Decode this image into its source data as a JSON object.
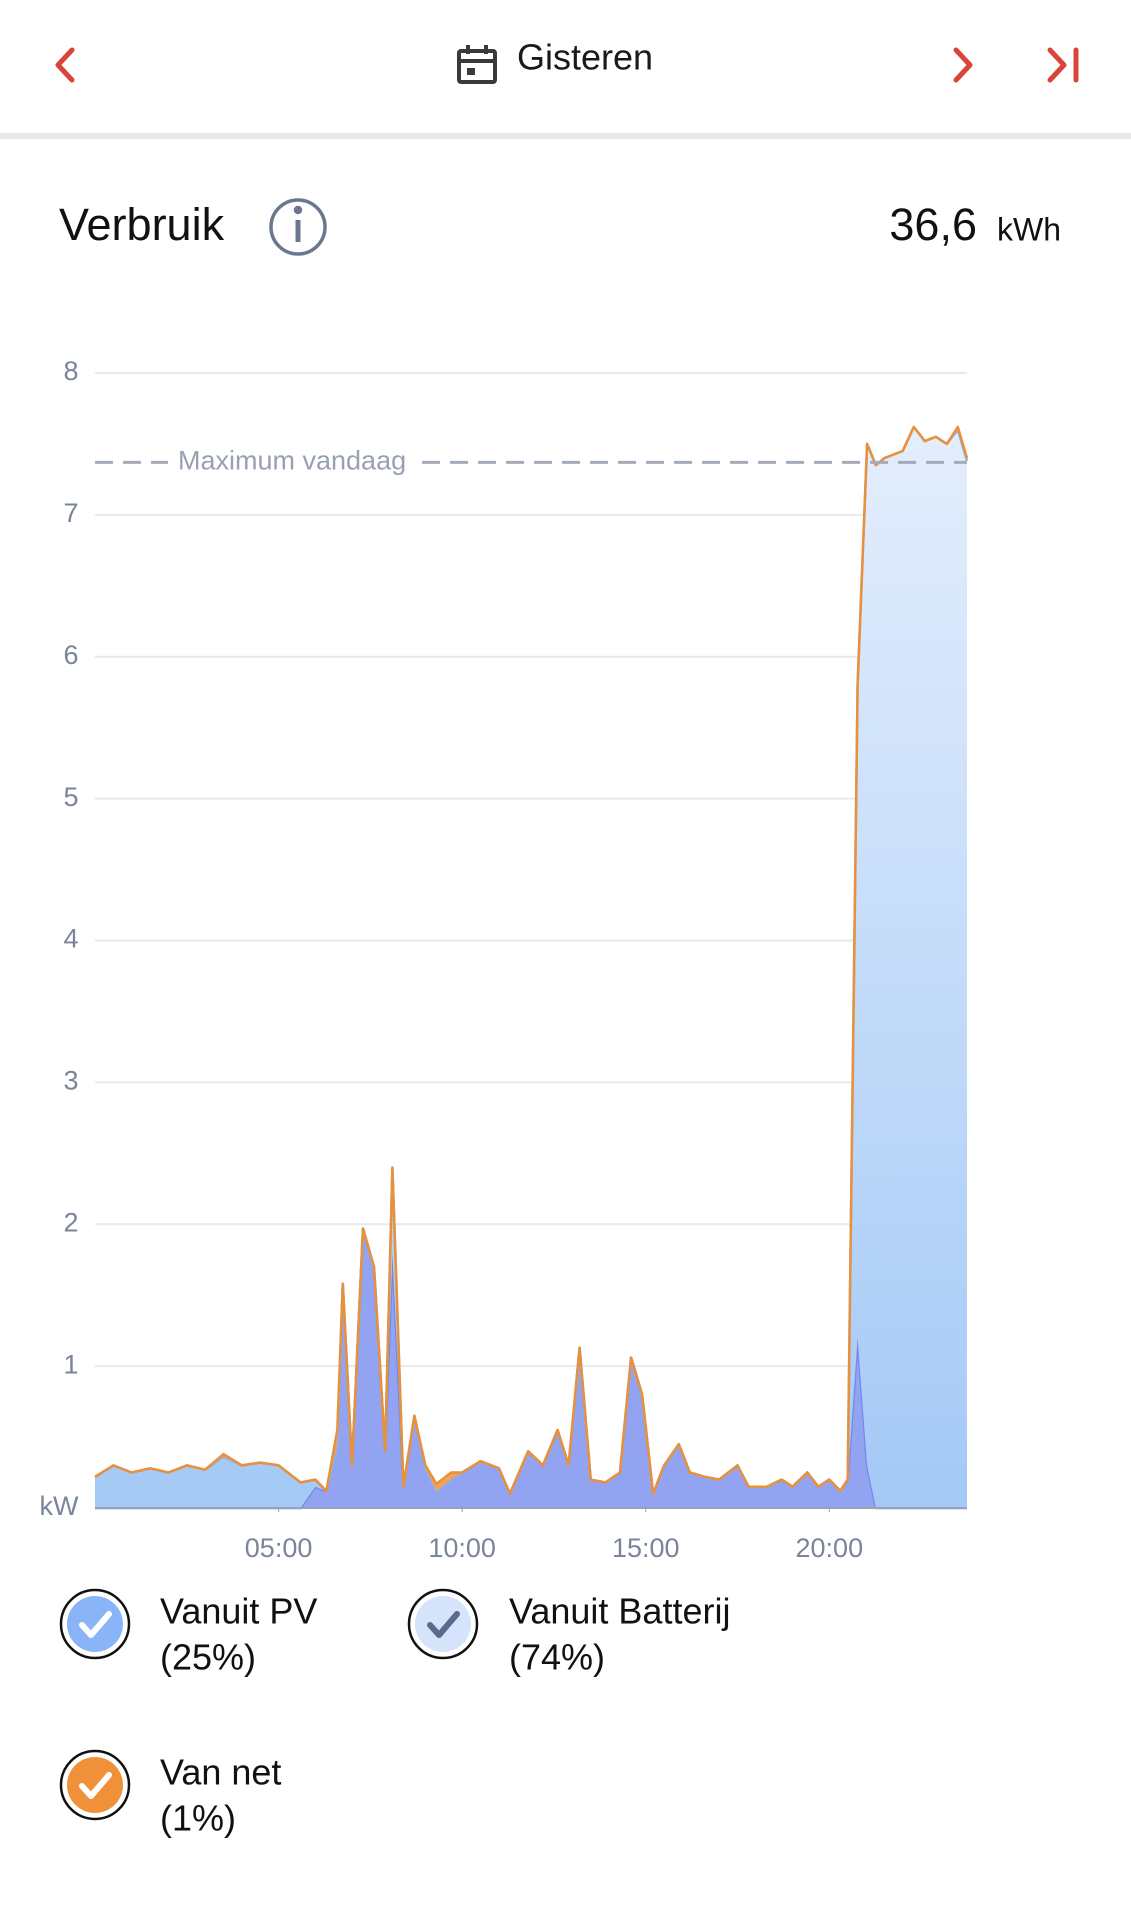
{
  "header": {
    "date_label": "Gisteren"
  },
  "section": {
    "title": "Verbruik",
    "total": "36,6",
    "unit": "kWh"
  },
  "chart_data": {
    "type": "area",
    "stacked": true,
    "xlim": [
      0,
      23.75
    ],
    "xticks": [
      {
        "value": 5,
        "label": "05:00"
      },
      {
        "value": 10,
        "label": "10:00"
      },
      {
        "value": 15,
        "label": "15:00"
      },
      {
        "value": 20,
        "label": "20:00"
      }
    ],
    "ylim": [
      0,
      8
    ],
    "yticks": [
      1,
      2,
      3,
      4,
      5,
      6,
      7,
      8
    ],
    "y_unit_label": "kW",
    "grid": true,
    "max_line": {
      "text": "Maximum vandaag",
      "value": 7.37
    },
    "x": [
      0,
      0.5,
      1,
      1.5,
      2,
      2.5,
      3,
      3.5,
      4,
      4.5,
      5,
      5.5,
      5.6,
      6.0,
      6.3,
      6.6,
      6.75,
      7.0,
      7.3,
      7.6,
      7.9,
      8.1,
      8.4,
      8.7,
      9.0,
      9.3,
      9.7,
      10.0,
      10.5,
      11.0,
      11.3,
      11.8,
      12.2,
      12.6,
      12.9,
      13.2,
      13.5,
      13.9,
      14.3,
      14.6,
      14.9,
      15.2,
      15.5,
      15.9,
      16.2,
      16.6,
      17.0,
      17.5,
      17.8,
      18.3,
      18.7,
      19.0,
      19.4,
      19.7,
      20.0,
      20.3,
      20.5,
      20.77,
      21.03,
      21.27,
      21.5,
      22.0,
      22.3,
      22.6,
      22.9,
      23.2,
      23.5,
      23.75
    ],
    "series": [
      {
        "name": "Vanuit PV",
        "share_label": "(25%)",
        "color": "#8c9ff0",
        "line_color": "#7389ea",
        "icon_color": "#8ab4f8",
        "check_color": "#ffffff",
        "values": [
          0,
          0,
          0,
          0,
          0,
          0,
          0,
          0,
          0,
          0,
          0,
          0,
          0,
          0.15,
          0.12,
          0.45,
          1.58,
          0.3,
          1.97,
          1.7,
          0.4,
          1.8,
          0.15,
          0.65,
          0.28,
          0.12,
          0.2,
          0.25,
          0.33,
          0.28,
          0.1,
          0.4,
          0.3,
          0.55,
          0.3,
          1.13,
          0.2,
          0.18,
          0.25,
          1.06,
          0.8,
          0.1,
          0.3,
          0.45,
          0.25,
          0.22,
          0.2,
          0.3,
          0.15,
          0.15,
          0.2,
          0.15,
          0.25,
          0.15,
          0.2,
          0.12,
          0.2,
          1.2,
          0.3,
          0,
          0,
          0,
          0,
          0,
          0,
          0,
          0,
          0
        ]
      },
      {
        "name": "Vanuit Batterij",
        "share_label": "(74%)",
        "color": "#aacdf7",
        "line_color": "#8db4ee",
        "icon_color": "#d6e4fb",
        "check_color": "#5a6a8a",
        "values": [
          0.22,
          0.3,
          0.25,
          0.28,
          0.25,
          0.3,
          0.27,
          0.36,
          0.3,
          0.32,
          0.3,
          0.2,
          0.18,
          0.05,
          0,
          0,
          0,
          0,
          0,
          0,
          0,
          0.6,
          0,
          0,
          0,
          0,
          0,
          0,
          0,
          0,
          0,
          0,
          0,
          0,
          0,
          0,
          0,
          0,
          0,
          0,
          0,
          0,
          0,
          0,
          0,
          0,
          0,
          0,
          0,
          0,
          0,
          0,
          0,
          0,
          0,
          0,
          0,
          4.6,
          7.2,
          7.35,
          7.4,
          7.45,
          7.62,
          7.52,
          7.55,
          7.5,
          7.6,
          7.38
        ]
      },
      {
        "name": "Van net",
        "share_label": "(1%)",
        "color": "#f0a050",
        "line_color": "#e8913a",
        "icon_color": "#f0913a",
        "check_color": "#ffffff",
        "values": [
          0,
          0,
          0,
          0,
          0,
          0,
          0,
          0.02,
          0,
          0,
          0,
          0,
          0,
          0,
          0,
          0.1,
          0,
          0,
          0,
          0,
          0,
          0,
          0,
          0,
          0.02,
          0.05,
          0.05,
          0,
          0,
          0,
          0,
          0,
          0,
          0,
          0,
          0,
          0,
          0,
          0,
          0,
          0,
          0,
          0,
          0,
          0,
          0,
          0,
          0,
          0,
          0,
          0,
          0,
          0,
          0,
          0,
          0,
          0,
          0,
          0,
          0,
          0,
          0,
          0,
          0,
          0,
          0,
          0.02,
          0.02
        ]
      }
    ]
  }
}
